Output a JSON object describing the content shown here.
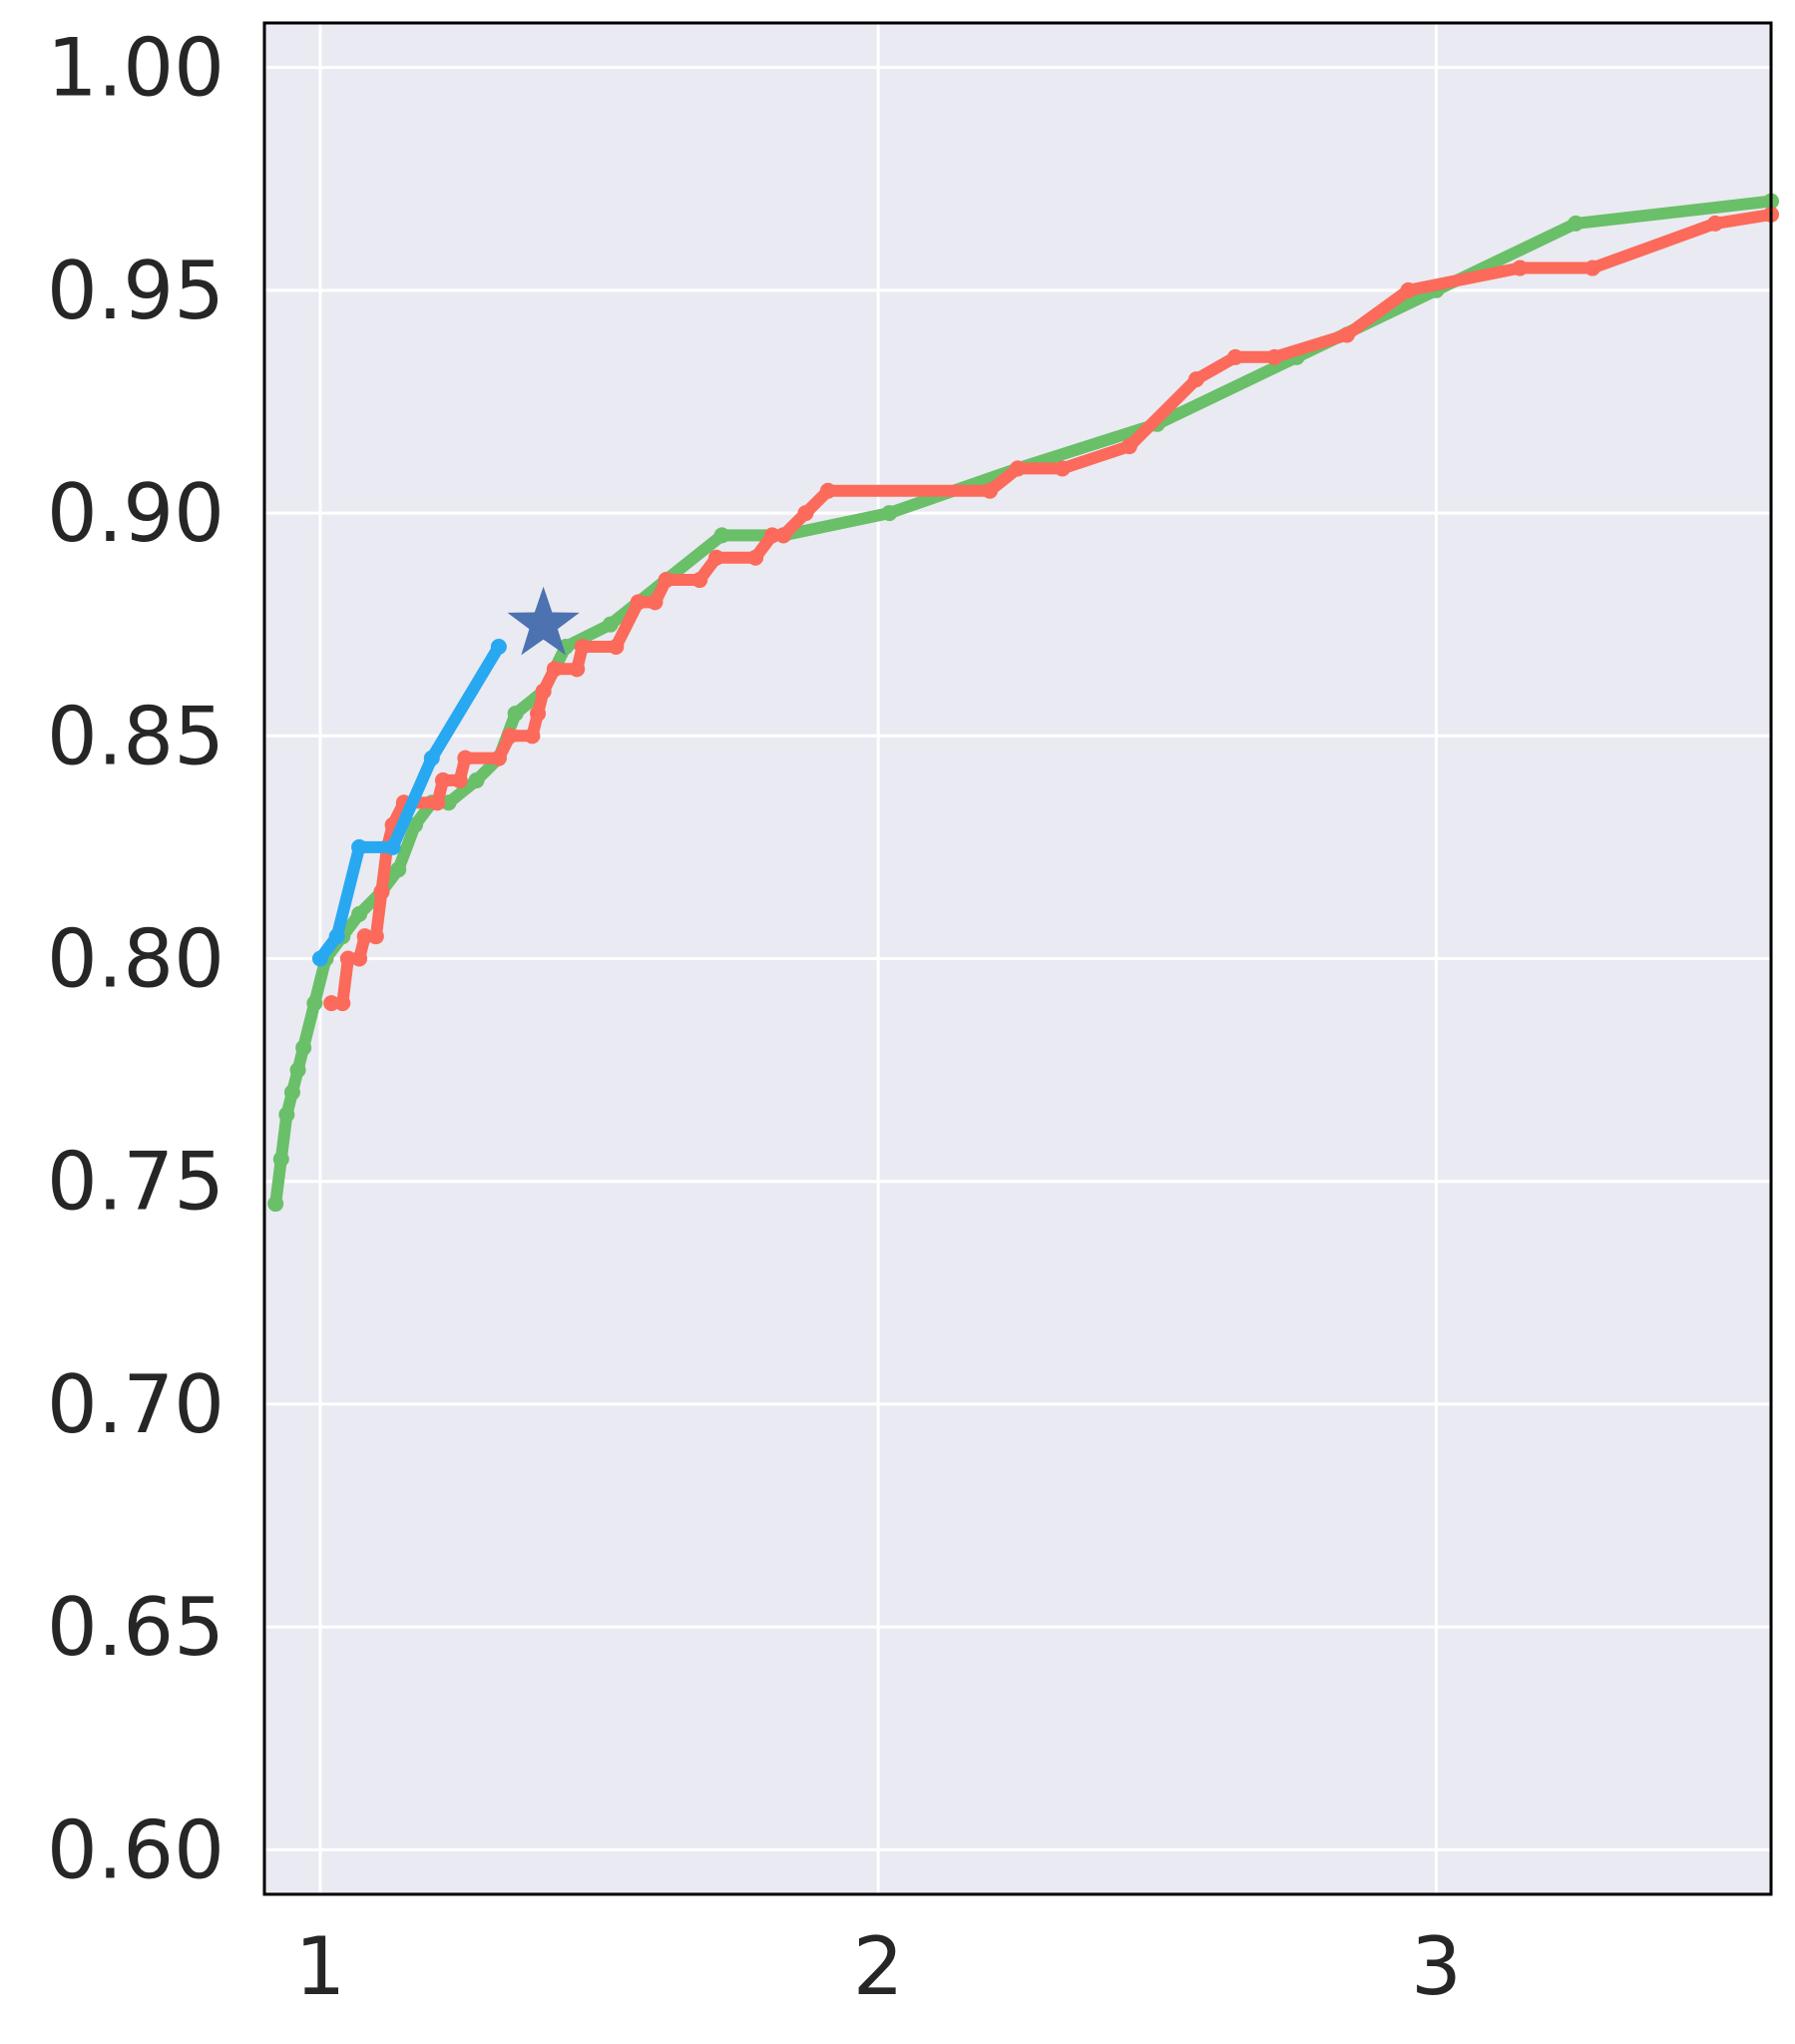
{
  "chart_data": {
    "type": "line",
    "title": "",
    "xlabel": "",
    "ylabel": "",
    "xlim": [
      0.9,
      3.6
    ],
    "ylim": [
      0.59,
      1.01
    ],
    "x_ticks": [
      1,
      2,
      3
    ],
    "x_tick_labels": [
      "1",
      "2",
      "3"
    ],
    "y_ticks": [
      0.6,
      0.65,
      0.7,
      0.75,
      0.8,
      0.85,
      0.9,
      0.95,
      1.0
    ],
    "y_tick_labels": [
      "0.60",
      "0.65",
      "0.70",
      "0.75",
      "0.80",
      "0.85",
      "0.90",
      "0.95",
      "1.00"
    ],
    "grid": true,
    "background_color": "#eaeaf2",
    "series": [
      {
        "color": "#6abf69",
        "points": [
          [
            0.92,
            0.745
          ],
          [
            0.93,
            0.755
          ],
          [
            0.94,
            0.765
          ],
          [
            0.95,
            0.77
          ],
          [
            0.96,
            0.775
          ],
          [
            0.97,
            0.78
          ],
          [
            0.99,
            0.79
          ],
          [
            1.01,
            0.8
          ],
          [
            1.04,
            0.805
          ],
          [
            1.07,
            0.81
          ],
          [
            1.11,
            0.815
          ],
          [
            1.14,
            0.82
          ],
          [
            1.17,
            0.83
          ],
          [
            1.2,
            0.835
          ],
          [
            1.23,
            0.835
          ],
          [
            1.28,
            0.84
          ],
          [
            1.32,
            0.845
          ],
          [
            1.35,
            0.855
          ],
          [
            1.4,
            0.86
          ],
          [
            1.44,
            0.87
          ],
          [
            1.52,
            0.875
          ],
          [
            1.62,
            0.885
          ],
          [
            1.72,
            0.895
          ],
          [
            1.83,
            0.895
          ],
          [
            2.02,
            0.9
          ],
          [
            2.25,
            0.91
          ],
          [
            2.5,
            0.92
          ],
          [
            2.75,
            0.935
          ],
          [
            3.0,
            0.95
          ],
          [
            3.25,
            0.965
          ],
          [
            3.6,
            0.97
          ]
        ]
      },
      {
        "color": "#fb6a5a",
        "points": [
          [
            1.02,
            0.79
          ],
          [
            1.04,
            0.79
          ],
          [
            1.05,
            0.8
          ],
          [
            1.07,
            0.8
          ],
          [
            1.08,
            0.805
          ],
          [
            1.1,
            0.805
          ],
          [
            1.11,
            0.815
          ],
          [
            1.12,
            0.825
          ],
          [
            1.13,
            0.83
          ],
          [
            1.15,
            0.835
          ],
          [
            1.21,
            0.835
          ],
          [
            1.22,
            0.84
          ],
          [
            1.25,
            0.84
          ],
          [
            1.26,
            0.845
          ],
          [
            1.32,
            0.845
          ],
          [
            1.34,
            0.85
          ],
          [
            1.38,
            0.85
          ],
          [
            1.39,
            0.855
          ],
          [
            1.4,
            0.86
          ],
          [
            1.42,
            0.865
          ],
          [
            1.46,
            0.865
          ],
          [
            1.47,
            0.87
          ],
          [
            1.53,
            0.87
          ],
          [
            1.57,
            0.88
          ],
          [
            1.6,
            0.88
          ],
          [
            1.62,
            0.885
          ],
          [
            1.68,
            0.885
          ],
          [
            1.71,
            0.89
          ],
          [
            1.78,
            0.89
          ],
          [
            1.81,
            0.895
          ],
          [
            1.83,
            0.895
          ],
          [
            1.87,
            0.9
          ],
          [
            1.91,
            0.905
          ],
          [
            2.2,
            0.905
          ],
          [
            2.25,
            0.91
          ],
          [
            2.33,
            0.91
          ],
          [
            2.45,
            0.915
          ],
          [
            2.57,
            0.93
          ],
          [
            2.64,
            0.935
          ],
          [
            2.71,
            0.935
          ],
          [
            2.84,
            0.94
          ],
          [
            2.95,
            0.95
          ],
          [
            3.15,
            0.955
          ],
          [
            3.28,
            0.955
          ],
          [
            3.5,
            0.965
          ],
          [
            3.6,
            0.967
          ]
        ]
      },
      {
        "color": "#29a8f2",
        "points": [
          [
            1.0,
            0.8
          ],
          [
            1.03,
            0.805
          ],
          [
            1.07,
            0.825
          ],
          [
            1.13,
            0.825
          ],
          [
            1.2,
            0.845
          ],
          [
            1.32,
            0.87
          ]
        ]
      }
    ],
    "markers": [
      {
        "shape": "star",
        "color": "#4c72b0",
        "x": 1.4,
        "y": 0.875
      }
    ]
  }
}
